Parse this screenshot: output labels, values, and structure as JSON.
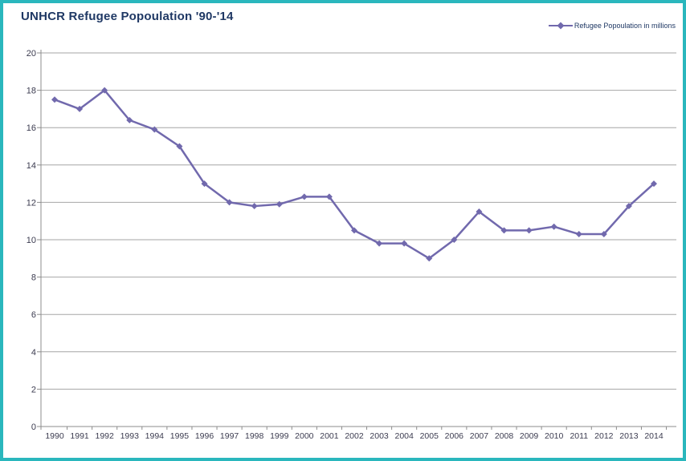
{
  "frame": {
    "border_color": "#2ab7bd",
    "background_color": "#ffffff"
  },
  "header": {
    "title": "UNHCR Refugee Popoulation '90-'14",
    "title_color": "#1f3864"
  },
  "legend": {
    "label": "Refugee Popoulation in millions",
    "marker": "line-with-diamond",
    "text_color": "#1f3864"
  },
  "chart_data": {
    "type": "line",
    "title": "UNHCR Refugee Popoulation '90-'14",
    "categories": [
      "1990",
      "1991",
      "1992",
      "1993",
      "1994",
      "1995",
      "1996",
      "1997",
      "1998",
      "1999",
      "2000",
      "2001",
      "2002",
      "2003",
      "2004",
      "2005",
      "2006",
      "2007",
      "2008",
      "2009",
      "2010",
      "2011",
      "2012",
      "2013",
      "2014"
    ],
    "series": [
      {
        "name": "Refugee Popoulation in millions",
        "marker": "diamond",
        "color": "#7169ad",
        "values": [
          17.5,
          17.0,
          18.0,
          16.4,
          15.9,
          15.0,
          13.0,
          12.0,
          11.8,
          11.9,
          12.3,
          12.3,
          10.5,
          9.8,
          9.8,
          9.0,
          10.0,
          11.5,
          10.5,
          10.5,
          10.7,
          10.3,
          10.3,
          11.8,
          13.0
        ]
      }
    ],
    "xlabel": "",
    "ylabel": "",
    "ylim": [
      0,
      20
    ],
    "ytick_step": 2,
    "grid": true,
    "legend_position": "top-right",
    "gridline_color": "#a6a6a6",
    "axis_color": "#8c8c8c",
    "tick_label_color": "#3c3c50"
  }
}
